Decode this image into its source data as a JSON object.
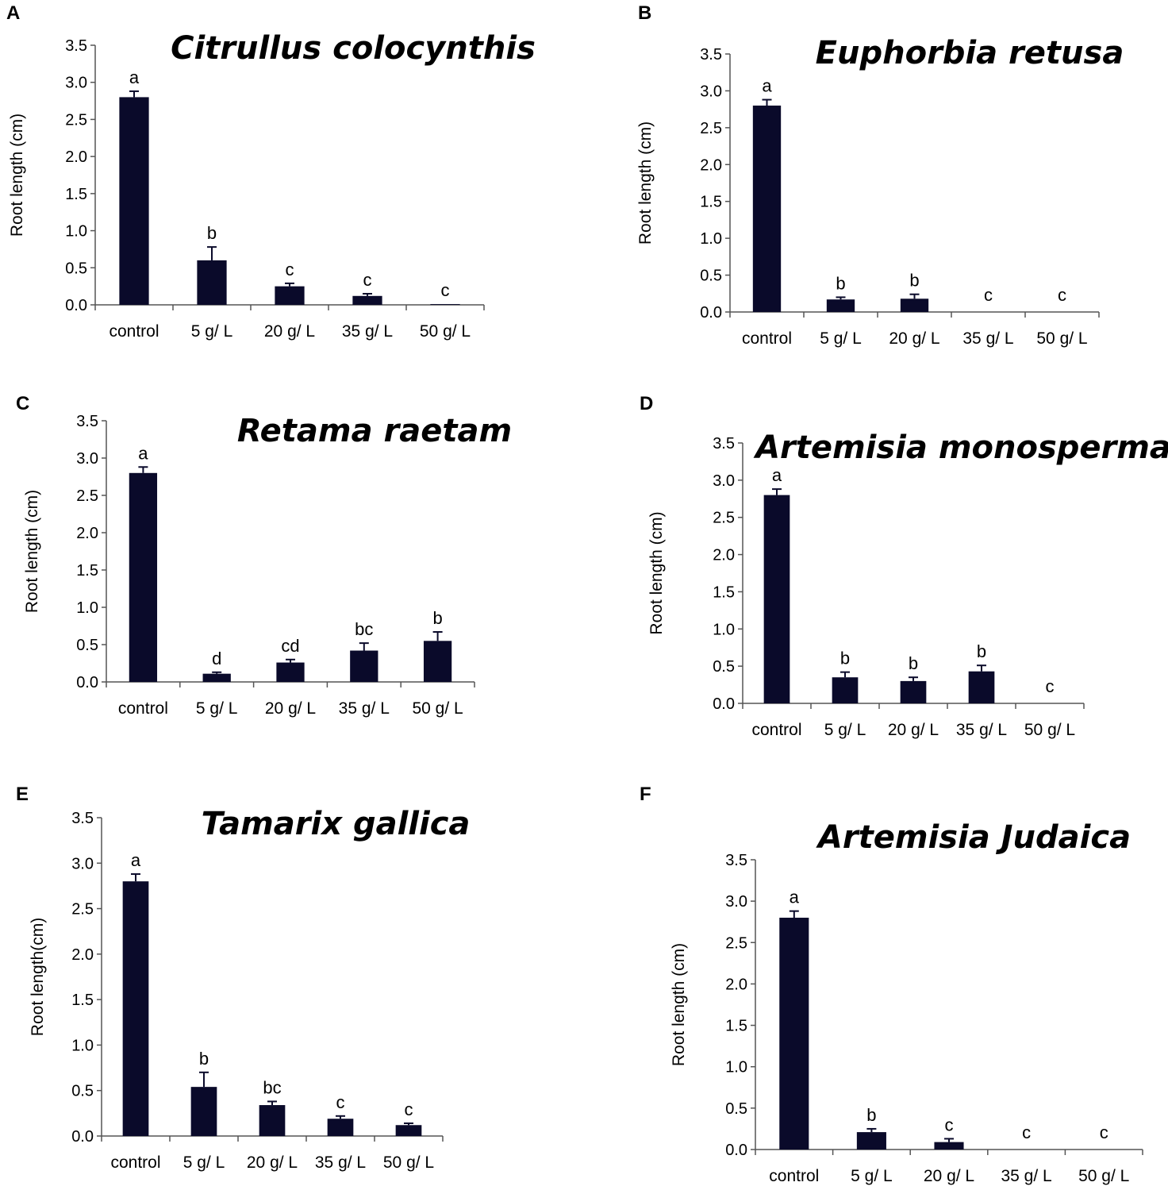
{
  "chart_data": [
    {
      "panel": "A",
      "type": "bar",
      "title": "Citrullus colocynthis",
      "ylabel": "Root length (cm)",
      "xlabel": "",
      "categories": [
        "control",
        "5 g/ L",
        "20 g/ L",
        "35 g/ L",
        "50 g/ L"
      ],
      "values": [
        2.8,
        0.6,
        0.25,
        0.12,
        0.01
      ],
      "errors": [
        0.08,
        0.18,
        0.04,
        0.03,
        0.0
      ],
      "significance": [
        "a",
        "b",
        "c",
        "c",
        "c"
      ],
      "yticks": [
        "0.0",
        "0.5",
        "1.0",
        "1.5",
        "2.0",
        "2.5",
        "3.0",
        "3.5"
      ],
      "ylim": [
        0,
        3.5
      ],
      "bar_color": "#0a0a2a"
    },
    {
      "panel": "B",
      "type": "bar",
      "title": "Euphorbia retusa",
      "ylabel": "Root length (cm)",
      "xlabel": "",
      "categories": [
        "control",
        "5 g/ L",
        "20 g/ L",
        "35 g/ L",
        "50 g/ L"
      ],
      "values": [
        2.8,
        0.17,
        0.18,
        0.0,
        0.0
      ],
      "errors": [
        0.08,
        0.03,
        0.06,
        0.0,
        0.0
      ],
      "significance": [
        "a",
        "b",
        "b",
        "c",
        "c"
      ],
      "yticks": [
        "0.0",
        "0.5",
        "1.0",
        "1.5",
        "2.0",
        "2.5",
        "3.0",
        "3.5"
      ],
      "ylim": [
        0,
        3.5
      ],
      "bar_color": "#0a0a2a"
    },
    {
      "panel": "C",
      "type": "bar",
      "title": "Retama raetam",
      "ylabel": "Root length (cm)",
      "xlabel": "",
      "categories": [
        "control",
        "5 g/ L",
        "20 g/ L",
        "35 g/ L",
        "50 g/ L"
      ],
      "values": [
        2.8,
        0.11,
        0.26,
        0.42,
        0.55
      ],
      "errors": [
        0.08,
        0.02,
        0.04,
        0.1,
        0.12
      ],
      "significance": [
        "a",
        "d",
        "cd",
        "bc",
        "b"
      ],
      "yticks": [
        "0.0",
        "0.5",
        "1.0",
        "1.5",
        "2.0",
        "2.5",
        "3.0",
        "3.5"
      ],
      "ylim": [
        0,
        3.5
      ],
      "bar_color": "#0a0a2a"
    },
    {
      "panel": "D",
      "type": "bar",
      "title": "Artemisia monosperma",
      "ylabel": "Root length (cm)",
      "xlabel": "",
      "categories": [
        "control",
        "5 g/ L",
        "20 g/ L",
        "35 g/ L",
        "50 g/ L"
      ],
      "values": [
        2.8,
        0.35,
        0.3,
        0.43,
        0.0
      ],
      "errors": [
        0.08,
        0.07,
        0.05,
        0.08,
        0.0
      ],
      "significance": [
        "a",
        "b",
        "b",
        "b",
        "c"
      ],
      "yticks": [
        "0.0",
        "0.5",
        "1.0",
        "1.5",
        "2.0",
        "2.5",
        "3.0",
        "3.5"
      ],
      "ylim": [
        0,
        3.5
      ],
      "bar_color": "#0a0a2a"
    },
    {
      "panel": "E",
      "type": "bar",
      "title": "Tamarix gallica",
      "ylabel": "Root length(cm)",
      "xlabel": "",
      "categories": [
        "control",
        "5 g/ L",
        "20 g/ L",
        "35 g/ L",
        "50 g/ L"
      ],
      "values": [
        2.8,
        0.54,
        0.34,
        0.19,
        0.12
      ],
      "errors": [
        0.08,
        0.16,
        0.04,
        0.03,
        0.02
      ],
      "significance": [
        "a",
        "b",
        "bc",
        "c",
        "c"
      ],
      "yticks": [
        "0.0",
        "0.5",
        "1.0",
        "1.5",
        "2.0",
        "2.5",
        "3.0",
        "3.5"
      ],
      "ylim": [
        0,
        3.5
      ],
      "bar_color": "#0a0a2a"
    },
    {
      "panel": "F",
      "type": "bar",
      "title": "Artemisia Judaica",
      "ylabel": "Root length (cm)",
      "xlabel": "",
      "categories": [
        "control",
        "5 g/ L",
        "20 g/ L",
        "35 g/ L",
        "50 g/ L"
      ],
      "values": [
        2.8,
        0.21,
        0.09,
        0.0,
        0.0
      ],
      "errors": [
        0.08,
        0.04,
        0.04,
        0.0,
        0.0
      ],
      "significance": [
        "a",
        "b",
        "c",
        "c",
        "c"
      ],
      "yticks": [
        "0.0",
        "0.5",
        "1.0",
        "1.5",
        "2.0",
        "2.5",
        "3.0",
        "3.5"
      ],
      "ylim": [
        0,
        3.5
      ],
      "bar_color": "#0a0a2a"
    }
  ]
}
